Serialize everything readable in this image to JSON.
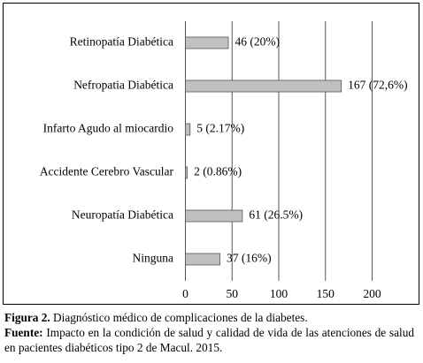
{
  "chart_data": {
    "type": "bar",
    "orientation": "horizontal",
    "categories": [
      "Retinopatía Diabética",
      "Nefropatia Diabética",
      "Infarto Agudo al miocardio",
      "Accidente Cerebro Vascular",
      "Neuropatía Diabética",
      "Ninguna"
    ],
    "values": [
      46,
      167,
      5,
      2,
      61,
      37
    ],
    "data_labels": [
      "46 (20%)",
      "167 (72,6%)",
      "5 (2.17%)",
      "2 (0.86%)",
      "61 (26.5%)",
      "37 (16%)"
    ],
    "xlim": [
      0,
      200
    ],
    "xticks": [
      "0",
      "50",
      "100",
      "150",
      "200"
    ],
    "grid": true,
    "bar_color": "#c0c0c0",
    "xlabel": "",
    "ylabel": ""
  },
  "caption": {
    "figure_label": "Figura 2.",
    "figure_text": " Diagnóstico médico de complicaciones de la diabetes.",
    "source_label": "Fuente:",
    "source_text": " Impacto en la condición de salud y calidad de vida de las atenciones de salud en pacientes diabéticos tipo 2 de Macul. 2015."
  }
}
